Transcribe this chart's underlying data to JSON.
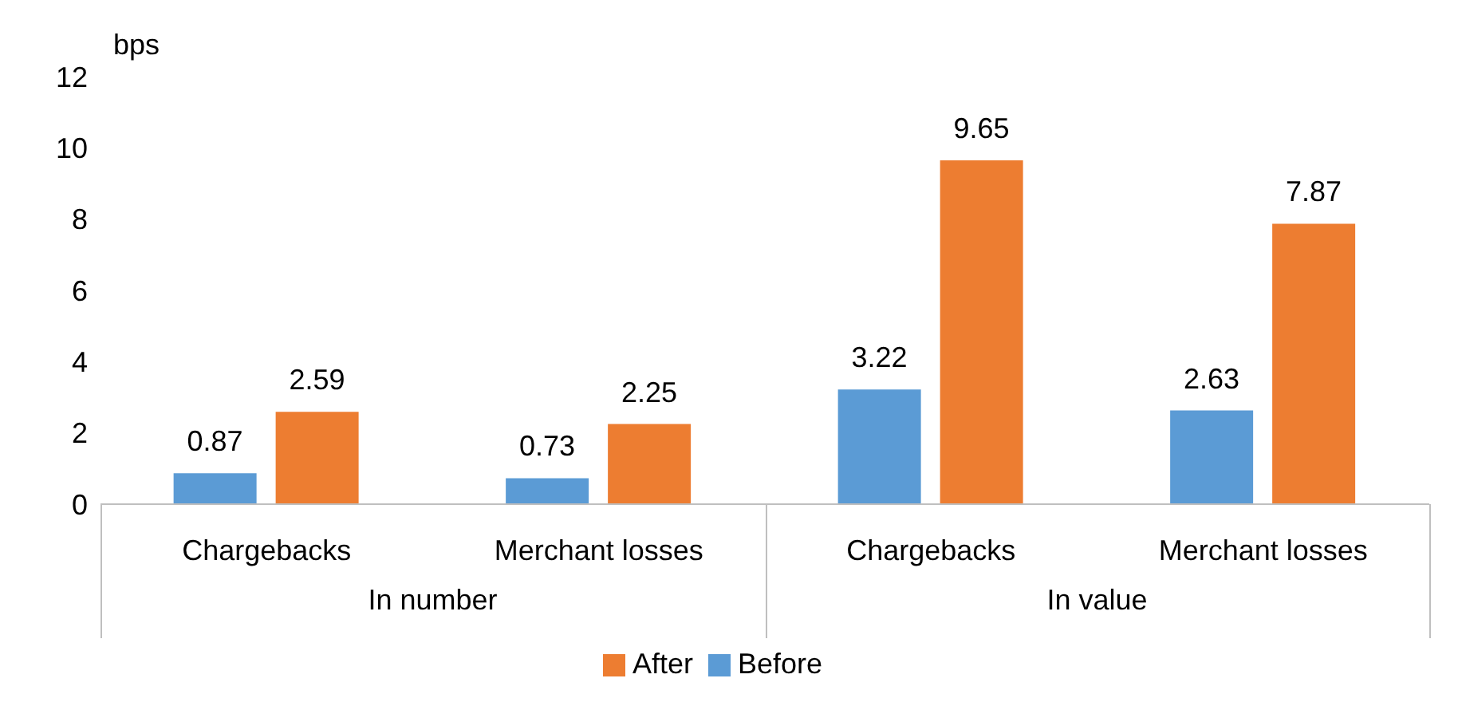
{
  "chart_data": {
    "type": "bar",
    "ylabel": "bps",
    "categories": [
      "Chargebacks",
      "Merchant losses",
      "Chargebacks",
      "Merchant losses"
    ],
    "series": [
      {
        "name": "Before",
        "color": "#5b9bd5",
        "values": [
          0.87,
          0.73,
          3.22,
          2.63
        ]
      },
      {
        "name": "After",
        "color": "#ed7d31",
        "values": [
          2.59,
          2.25,
          9.65,
          7.87
        ]
      }
    ],
    "annotations": [
      "In number",
      "In value"
    ],
    "ylim": [
      0,
      12
    ],
    "yticks": [
      0,
      2,
      4,
      6,
      8,
      10,
      12
    ],
    "grid": false,
    "legend": "bottom",
    "data_labels": true
  }
}
